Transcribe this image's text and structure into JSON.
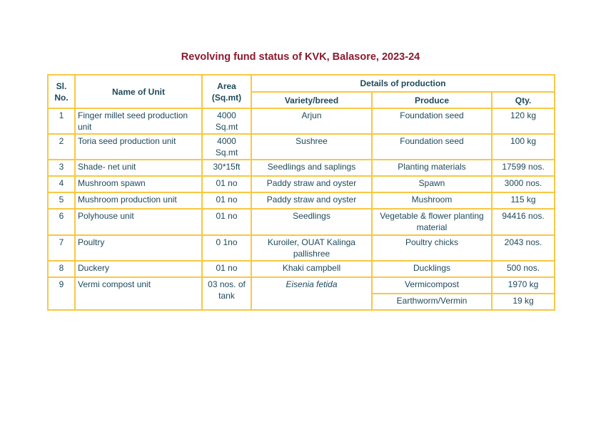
{
  "title": "Revolving fund status of KVK, Balasore, 2023-24",
  "headers": {
    "sl_no": "Sl. No.",
    "name": "Name of Unit",
    "area": "Area (Sq.mt)",
    "details": "Details of production",
    "variety": "Variety/breed",
    "produce": "Produce",
    "qty": "Qty."
  },
  "rows": [
    {
      "sl": "1",
      "name": "Finger millet seed production unit",
      "area": "4000 Sq.mt",
      "variety": "Arjun",
      "produce": "Foundation seed",
      "qty": "120 kg"
    },
    {
      "sl": "2",
      "name": "Toria seed production unit",
      "area": "4000 Sq.mt",
      "variety": "Sushree",
      "produce": "Foundation seed",
      "qty": "100 kg"
    },
    {
      "sl": "3",
      "name": "Shade- net unit",
      "area": "30*15ft",
      "variety": "Seedlings and saplings",
      "produce": "Planting materials",
      "qty": "17599 nos."
    },
    {
      "sl": "4",
      "name": "Mushroom spawn",
      "area": "01 no",
      "variety": "Paddy straw and oyster",
      "produce": "Spawn",
      "qty": "3000 nos."
    },
    {
      "sl": "5",
      "name": "Mushroom production unit",
      "area": "01 no",
      "variety": "Paddy straw and oyster",
      "produce": "Mushroom",
      "qty": "115 kg"
    },
    {
      "sl": "6",
      "name": "Polyhouse unit",
      "area": "01 no",
      "variety": "Seedlings",
      "produce": "Vegetable & flower planting material",
      "qty": "94416 nos."
    },
    {
      "sl": "7",
      "name": "Poultry",
      "area": "0 1no",
      "variety": "Kuroiler, OUAT Kalinga pallishree",
      "produce": "Poultry chicks",
      "qty": "2043 nos."
    },
    {
      "sl": "8",
      "name": "Duckery",
      "area": "01 no",
      "variety": "Khaki campbell",
      "produce": "Ducklings",
      "qty": "500 nos."
    },
    {
      "sl": "9",
      "name": "Vermi compost unit",
      "area": "03 nos. of tank",
      "variety": "Eisenia fetida",
      "produce": "Vermicompost",
      "qty": "1970 kg",
      "produce2": "Earthworm/Vermin",
      "qty2": "19 kg"
    }
  ]
}
